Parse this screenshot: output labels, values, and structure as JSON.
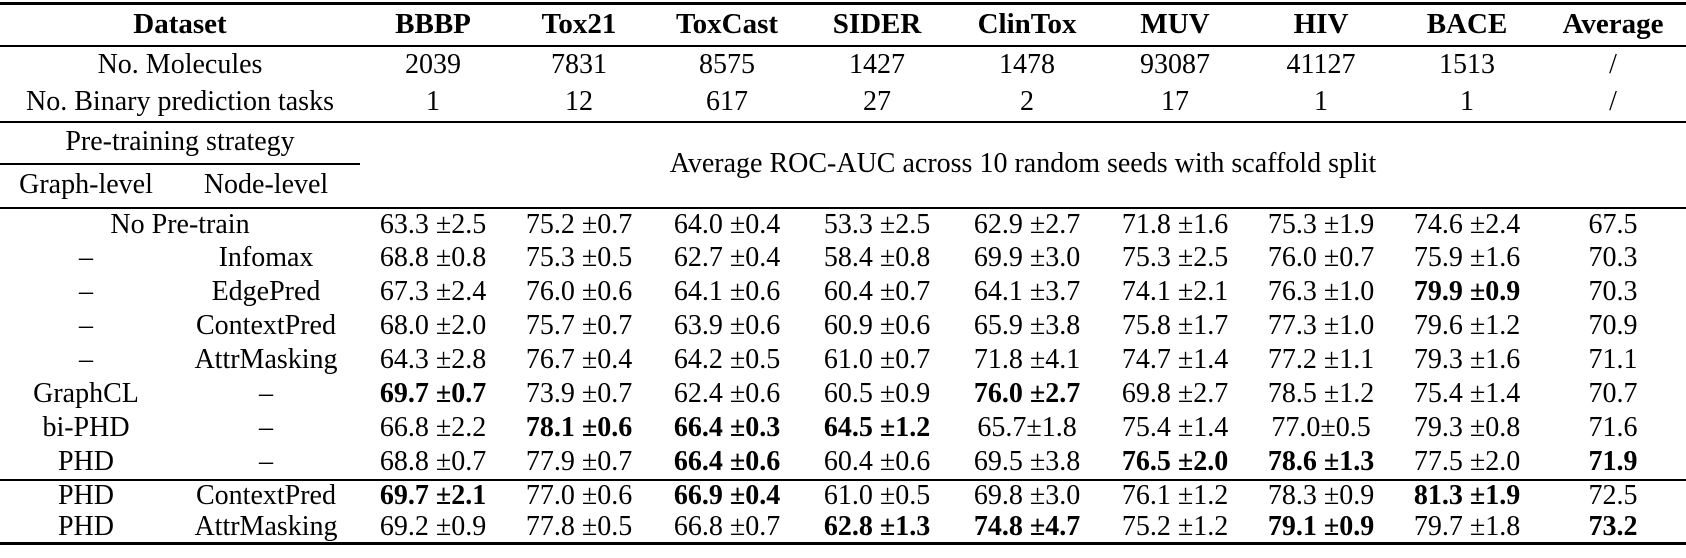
{
  "table": {
    "header": [
      "Dataset",
      "BBBP",
      "Tox21",
      "ToxCast",
      "SIDER",
      "ClinTox",
      "MUV",
      "HIV",
      "BACE",
      "Average"
    ],
    "info_rows": [
      {
        "label": "No. Molecules",
        "values": [
          "2039",
          "7831",
          "8575",
          "1427",
          "1478",
          "93087",
          "41127",
          "1513",
          "/"
        ]
      },
      {
        "label": "No. Binary prediction tasks",
        "values": [
          "1",
          "12",
          "617",
          "27",
          "2",
          "17",
          "1",
          "1",
          "/"
        ]
      }
    ],
    "strategy_header": {
      "title": "Pre-training strategy",
      "sub": [
        "Graph-level",
        "Node-level"
      ],
      "span_text": "Average ROC-AUC across 10 random seeds with scaffold split"
    },
    "result_rows": [
      {
        "graph": "No Pre-train",
        "node": "",
        "span": true,
        "values": [
          "63.3 ±2.5",
          "75.2 ±0.7",
          "64.0 ±0.4",
          "53.3 ±2.5",
          "62.9 ±2.7",
          "71.8 ±1.6",
          "75.3 ±1.9",
          "74.6 ±2.4",
          "67.5"
        ],
        "bold": []
      },
      {
        "graph": "–",
        "node": "Infomax",
        "values": [
          "68.8 ±0.8",
          "75.3 ±0.5",
          "62.7 ±0.4",
          "58.4 ±0.8",
          "69.9 ±3.0",
          "75.3 ±2.5",
          "76.0 ±0.7",
          "75.9 ±1.6",
          "70.3"
        ],
        "bold": []
      },
      {
        "graph": "–",
        "node": "EdgePred",
        "values": [
          "67.3 ±2.4",
          "76.0 ±0.6",
          "64.1 ±0.6",
          "60.4 ±0.7",
          "64.1 ±3.7",
          "74.1 ±2.1",
          "76.3 ±1.0",
          "79.9 ±0.9",
          "70.3"
        ],
        "bold": [
          7
        ]
      },
      {
        "graph": "–",
        "node": "ContextPred",
        "values": [
          "68.0 ±2.0",
          "75.7 ±0.7",
          "63.9 ±0.6",
          "60.9 ±0.6",
          "65.9 ±3.8",
          "75.8 ±1.7",
          "77.3 ±1.0",
          "79.6 ±1.2",
          "70.9"
        ],
        "bold": []
      },
      {
        "graph": "–",
        "node": "AttrMasking",
        "values": [
          "64.3 ±2.8",
          "76.7 ±0.4",
          "64.2 ±0.5",
          "61.0 ±0.7",
          "71.8 ±4.1",
          "74.7 ±1.4",
          "77.2 ±1.1",
          "79.3 ±1.6",
          "71.1"
        ],
        "bold": []
      },
      {
        "graph": "GraphCL",
        "node": "–",
        "values": [
          "69.7 ±0.7",
          "73.9 ±0.7",
          "62.4 ±0.6",
          "60.5 ±0.9",
          "76.0 ±2.7",
          "69.8 ±2.7",
          "78.5 ±1.2",
          "75.4 ±1.4",
          "70.7"
        ],
        "bold": [
          0,
          4
        ]
      },
      {
        "graph": "bi-PHD",
        "node": "–",
        "values": [
          "66.8 ±2.2",
          "78.1 ±0.6",
          "66.4 ±0.3",
          "64.5 ±1.2",
          "65.7±1.8",
          "75.4 ±1.4",
          "77.0±0.5",
          "79.3 ±0.8",
          "71.6"
        ],
        "bold": [
          1,
          2,
          3
        ]
      },
      {
        "graph": "PHD",
        "node": "–",
        "values": [
          "68.8 ±0.7",
          "77.9 ±0.7",
          "66.4 ±0.6",
          "60.4 ±0.6",
          "69.5 ±3.8",
          "76.5 ±2.0",
          "78.6 ±1.3",
          "77.5 ±2.0",
          "71.9"
        ],
        "bold": [
          2,
          5,
          6,
          8
        ]
      },
      {
        "graph": "PHD",
        "node": "ContextPred",
        "section_start": true,
        "values": [
          "69.7 ±2.1",
          "77.0 ±0.6",
          "66.9 ±0.4",
          "61.0 ±0.5",
          "69.8 ±3.0",
          "76.1 ±1.2",
          "78.3 ±0.9",
          "81.3 ±1.9",
          "72.5"
        ],
        "bold": [
          0,
          2,
          7
        ]
      },
      {
        "graph": "PHD",
        "node": "AttrMasking",
        "values": [
          "69.2 ±0.9",
          "77.8 ±0.5",
          "66.8 ±0.7",
          "62.8 ±1.3",
          "74.8 ±4.7",
          "75.2 ±1.2",
          "79.1 ±0.9",
          "79.7 ±1.8",
          "73.2"
        ],
        "bold": [
          3,
          4,
          6,
          8
        ]
      }
    ]
  }
}
